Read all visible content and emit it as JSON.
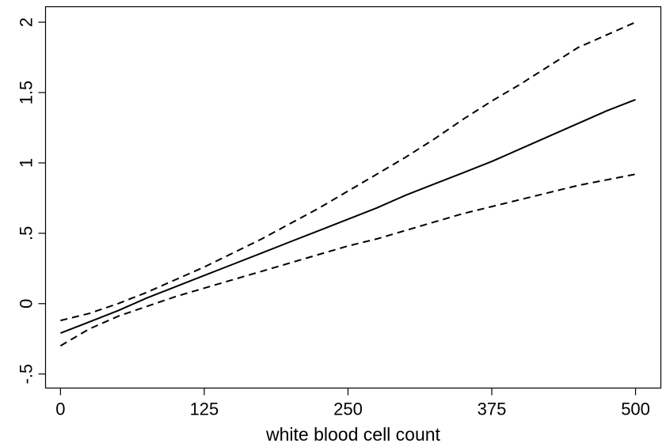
{
  "chart_data": {
    "type": "line",
    "title": "",
    "xlabel": "white blood cell count",
    "ylabel": "",
    "xlim": [
      -13,
      522
    ],
    "ylim": [
      -0.6,
      2.11
    ],
    "x_ticks": [
      0,
      125,
      250,
      375,
      500
    ],
    "x_tick_labels": [
      "0",
      "125",
      "250",
      "375",
      "500"
    ],
    "y_ticks": [
      -0.5,
      0,
      0.5,
      1,
      1.5,
      2
    ],
    "y_tick_labels": [
      "-.5",
      "0",
      ".5",
      "1",
      "1.5",
      "2"
    ],
    "grid": false,
    "legend": "none",
    "series": [
      {
        "line_style": "dashed",
        "color": "#000000",
        "x": [
          0,
          25,
          50,
          75,
          100,
          125,
          150,
          175,
          200,
          225,
          250,
          275,
          300,
          325,
          350,
          375,
          400,
          425,
          450,
          475,
          500
        ],
        "y": [
          -0.12,
          -0.07,
          0.0,
          0.08,
          0.17,
          0.26,
          0.36,
          0.46,
          0.57,
          0.68,
          0.8,
          0.92,
          1.04,
          1.17,
          1.31,
          1.44,
          1.56,
          1.69,
          1.82,
          1.91,
          2.0
        ]
      },
      {
        "line_style": "solid",
        "color": "#000000",
        "x": [
          0,
          25,
          50,
          75,
          100,
          125,
          150,
          175,
          200,
          225,
          250,
          275,
          300,
          325,
          350,
          375,
          400,
          425,
          450,
          475,
          500
        ],
        "y": [
          -0.21,
          -0.13,
          -0.05,
          0.04,
          0.12,
          0.2,
          0.28,
          0.36,
          0.44,
          0.52,
          0.6,
          0.68,
          0.77,
          0.85,
          0.93,
          1.01,
          1.1,
          1.19,
          1.28,
          1.37,
          1.45
        ]
      },
      {
        "line_style": "dashed",
        "color": "#000000",
        "x": [
          0,
          25,
          50,
          75,
          100,
          125,
          150,
          175,
          200,
          225,
          250,
          275,
          300,
          325,
          350,
          375,
          400,
          425,
          450,
          475,
          500
        ],
        "y": [
          -0.3,
          -0.18,
          -0.09,
          -0.02,
          0.05,
          0.11,
          0.17,
          0.23,
          0.29,
          0.35,
          0.41,
          0.46,
          0.52,
          0.58,
          0.64,
          0.69,
          0.74,
          0.79,
          0.84,
          0.88,
          0.92
        ]
      }
    ]
  }
}
